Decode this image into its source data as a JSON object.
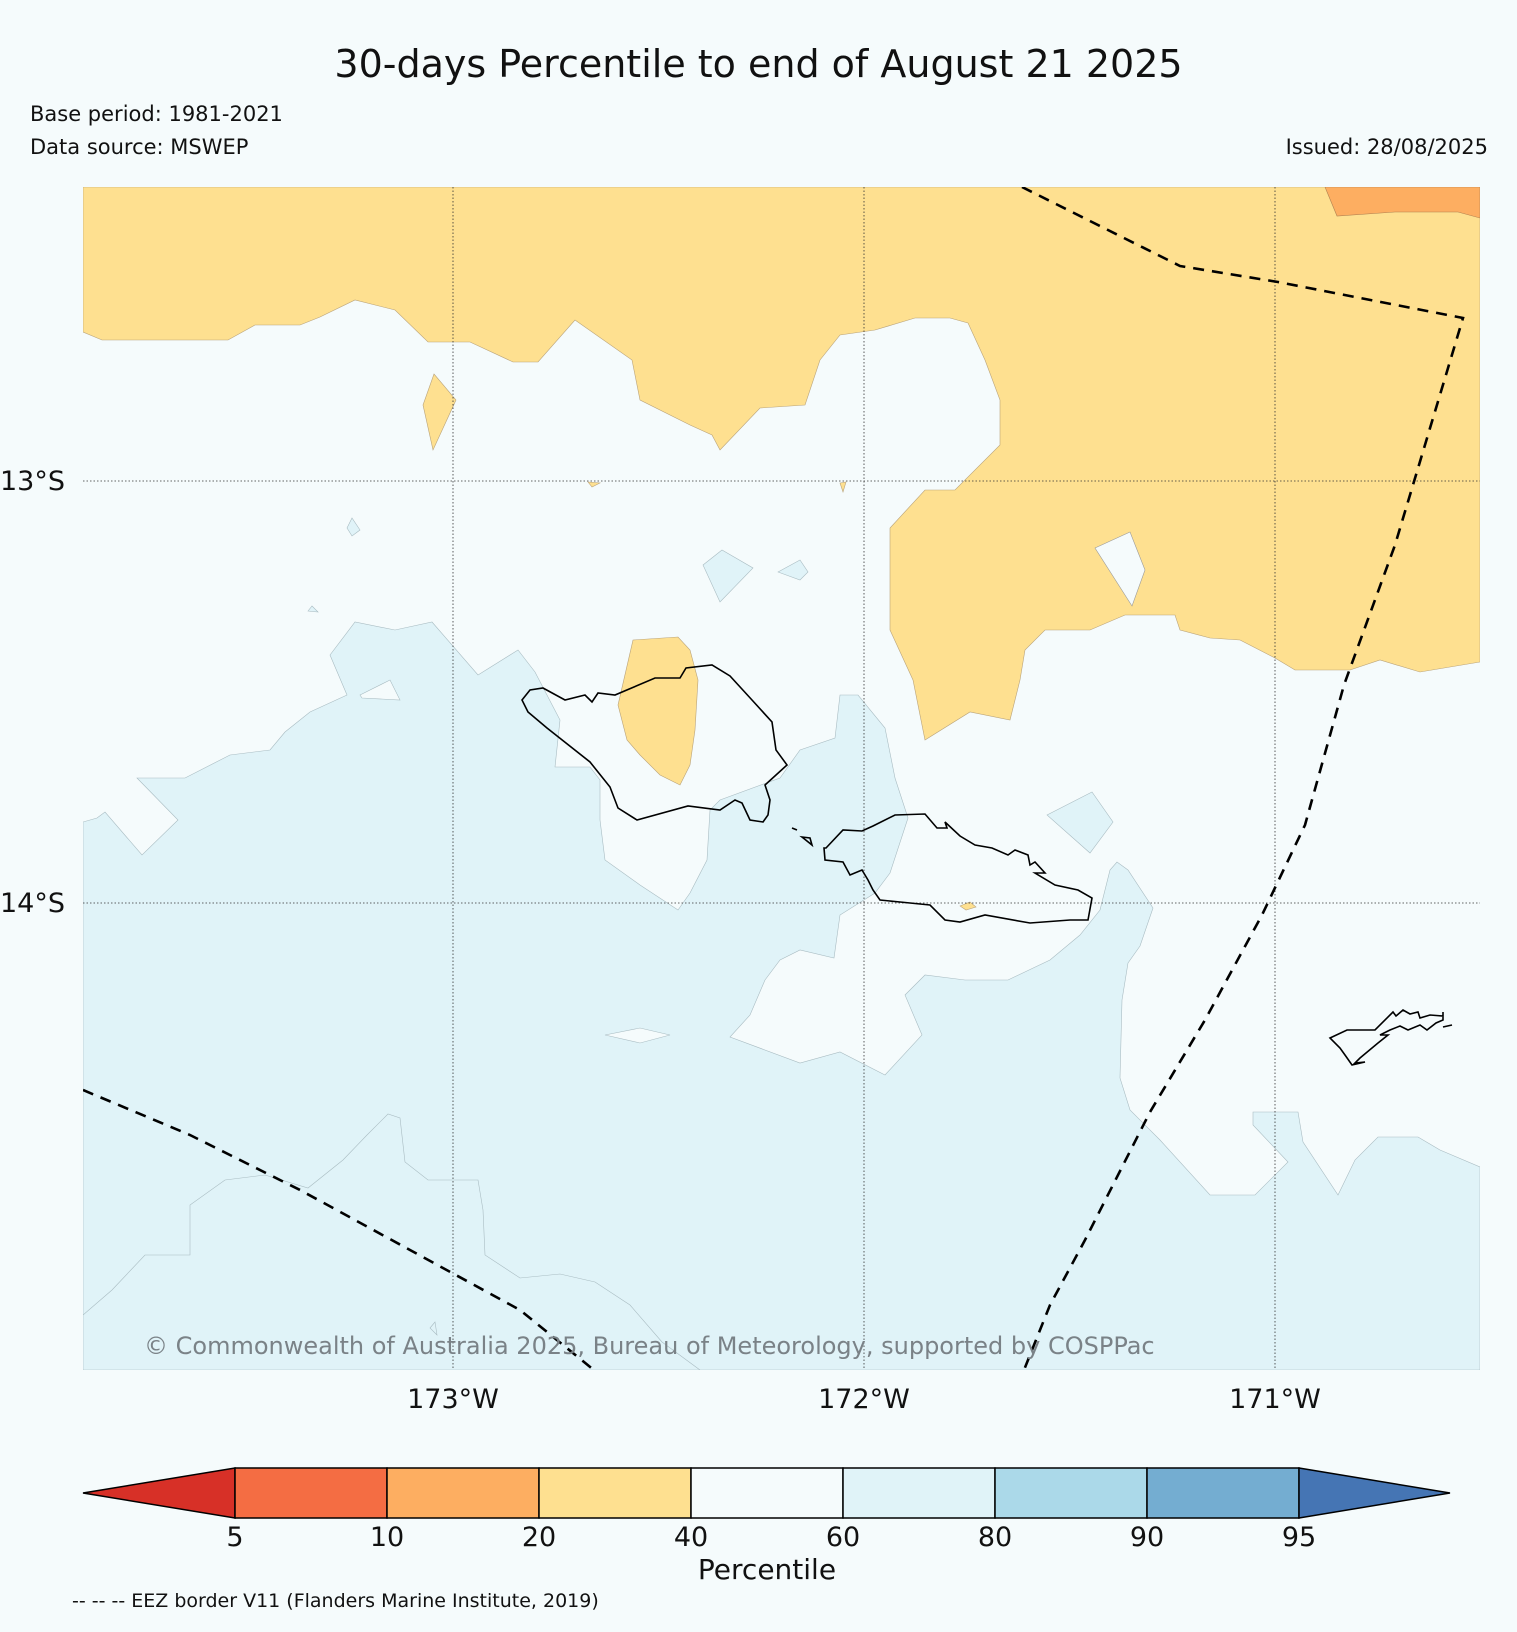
{
  "title": "30-days Percentile to end of August 21 2025",
  "base_period": "Base period: 1981-2021",
  "data_source": "Data source: MSWEP",
  "issued": "Issued: 28/08/2025",
  "latitude_labels": [
    "13°S",
    "14°S"
  ],
  "longitude_labels": [
    "173°W",
    "172°W",
    "171°W"
  ],
  "copyright": "© Commonwealth of Australia 2025, Bureau of Meteorology, supported by COSPPac",
  "colorbar": {
    "label": "Percentile",
    "ticks": [
      "5",
      "10",
      "20",
      "40",
      "60",
      "80",
      "90",
      "95"
    ],
    "colors": {
      "below_5": "#d73027",
      "5_10": "#f46d43",
      "10_20": "#fdae61",
      "20_40": "#fee090",
      "40_60": "#f5fbfc",
      "60_80": "#e0f3f8",
      "80_90": "#abd9e9",
      "90_95": "#74add1",
      "above_95": "#4575b4"
    }
  },
  "legend_note": "-- -- -- EEZ border V11 (Flanders Marine Institute, 2019)",
  "map": {
    "region": "Samoa",
    "category_colors": {
      "dry": "#fee090",
      "drier": "#fdae61",
      "neutral": "#f5fbfc",
      "wet": "#e0f3f8"
    }
  }
}
